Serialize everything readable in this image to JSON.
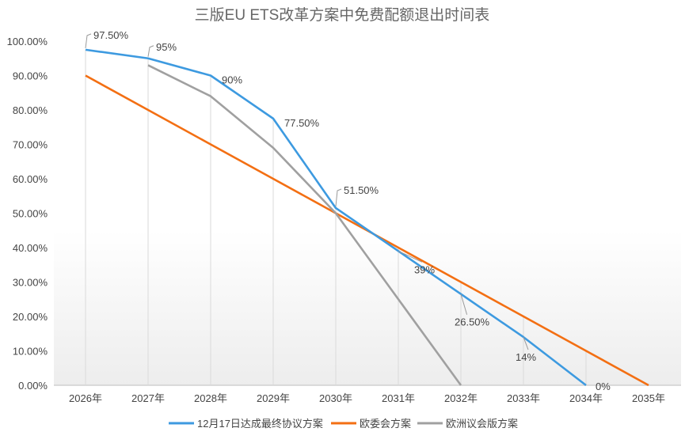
{
  "chart_data": {
    "type": "line",
    "title": "三版EU ETS改革方案中免费配额退出时间表",
    "categories": [
      "2026年",
      "2027年",
      "2028年",
      "2029年",
      "2030年",
      "2031年",
      "2032年",
      "2033年",
      "2034年",
      "2035年"
    ],
    "ylim": [
      0,
      100
    ],
    "yticks": [
      "0.00%",
      "10.00%",
      "20.00%",
      "30.00%",
      "40.00%",
      "50.00%",
      "60.00%",
      "70.00%",
      "80.00%",
      "90.00%",
      "100.00%"
    ],
    "legend_position": "bottom",
    "series": [
      {
        "name": "12月17日达成最终协议方案",
        "color": "#3d9ae0",
        "values": [
          97.5,
          95,
          90,
          77.5,
          51.5,
          39,
          26.5,
          14,
          0,
          null
        ],
        "labels": [
          "97.50%",
          "95%",
          "90%",
          "77.50%",
          "51.50%",
          "39%",
          "26.50%",
          "14%",
          "0%",
          null
        ]
      },
      {
        "name": "欧委会方案",
        "color": "#f36f13",
        "values": [
          90,
          80,
          70,
          60,
          50,
          40,
          30,
          20,
          10,
          0
        ]
      },
      {
        "name": "欧洲议会版方案",
        "color": "#a0a0a0",
        "values": [
          null,
          93,
          84,
          69,
          50,
          25,
          0,
          null,
          null,
          null
        ]
      }
    ]
  }
}
